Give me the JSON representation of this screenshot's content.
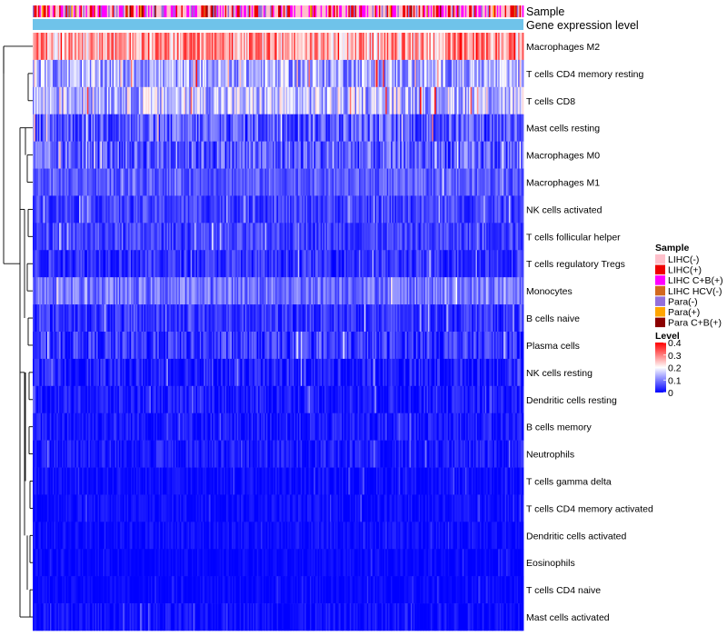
{
  "chart_data": {
    "type": "heatmap",
    "title": "",
    "annotation_tracks": [
      "Sample",
      "Gene expression level"
    ],
    "rows": [
      {
        "name": "Macrophages M2",
        "mean": 0.27,
        "spread": 0.1
      },
      {
        "name": "T cells CD4 memory resting",
        "mean": 0.13,
        "spread": 0.08
      },
      {
        "name": "T cells CD8",
        "mean": 0.15,
        "spread": 0.09
      },
      {
        "name": "Mast cells resting",
        "mean": 0.07,
        "spread": 0.07
      },
      {
        "name": "Macrophages M0",
        "mean": 0.07,
        "spread": 0.07
      },
      {
        "name": "Macrophages M1",
        "mean": 0.07,
        "spread": 0.04
      },
      {
        "name": "NK cells activated",
        "mean": 0.05,
        "spread": 0.04
      },
      {
        "name": "T cells follicular helper",
        "mean": 0.05,
        "spread": 0.04
      },
      {
        "name": "T cells regulatory  Tregs",
        "mean": 0.04,
        "spread": 0.04
      },
      {
        "name": "Monocytes",
        "mean": 0.09,
        "spread": 0.05
      },
      {
        "name": "B cells naive",
        "mean": 0.04,
        "spread": 0.04
      },
      {
        "name": "Plasma cells",
        "mean": 0.04,
        "spread": 0.05
      },
      {
        "name": "NK cells resting",
        "mean": 0.02,
        "spread": 0.04
      },
      {
        "name": "Dendritic cells resting",
        "mean": 0.02,
        "spread": 0.03
      },
      {
        "name": "B cells memory",
        "mean": 0.02,
        "spread": 0.03
      },
      {
        "name": "Neutrophils",
        "mean": 0.02,
        "spread": 0.03
      },
      {
        "name": "T cells gamma delta",
        "mean": 0.01,
        "spread": 0.02
      },
      {
        "name": "T cells CD4 memory activated",
        "mean": 0.01,
        "spread": 0.02
      },
      {
        "name": "Dendritic cells activated",
        "mean": 0.01,
        "spread": 0.02
      },
      {
        "name": "Eosinophils",
        "mean": 0.005,
        "spread": 0.015
      },
      {
        "name": "T cells CD4 naive",
        "mean": 0.005,
        "spread": 0.015
      },
      {
        "name": "Mast cells activated",
        "mean": 0.01,
        "spread": 0.025
      }
    ],
    "n_columns": 370,
    "legend": {
      "sample": {
        "title": "Sample",
        "entries": [
          {
            "label": "LIHC(-)",
            "color": "#ffc0cb"
          },
          {
            "label": "LIHC(+)",
            "color": "#ee0000"
          },
          {
            "label": "LIHC C+B(+)",
            "color": "#ff00ff"
          },
          {
            "label": "LIHC HCV(-)",
            "color": "#d2691e"
          },
          {
            "label": "Para(-)",
            "color": "#9370db"
          },
          {
            "label": "Para(+)",
            "color": "#ffa500"
          },
          {
            "label": "Para C+B(+)",
            "color": "#8b0000"
          }
        ]
      },
      "level": {
        "title": "Level",
        "ticks": [
          "0.4",
          "0.3",
          "0.2",
          "0.1",
          "0"
        ],
        "tick_values": [
          0.4,
          0.3,
          0.2,
          0.1,
          0
        ],
        "range": [
          0,
          0.4
        ],
        "colors": [
          "#0000ff",
          "#ffffff",
          "#ff0000"
        ]
      }
    },
    "gene_expression_color": "#6fc3ea",
    "x_ranges": {
      "value_range": [
        0,
        0.4
      ]
    }
  }
}
